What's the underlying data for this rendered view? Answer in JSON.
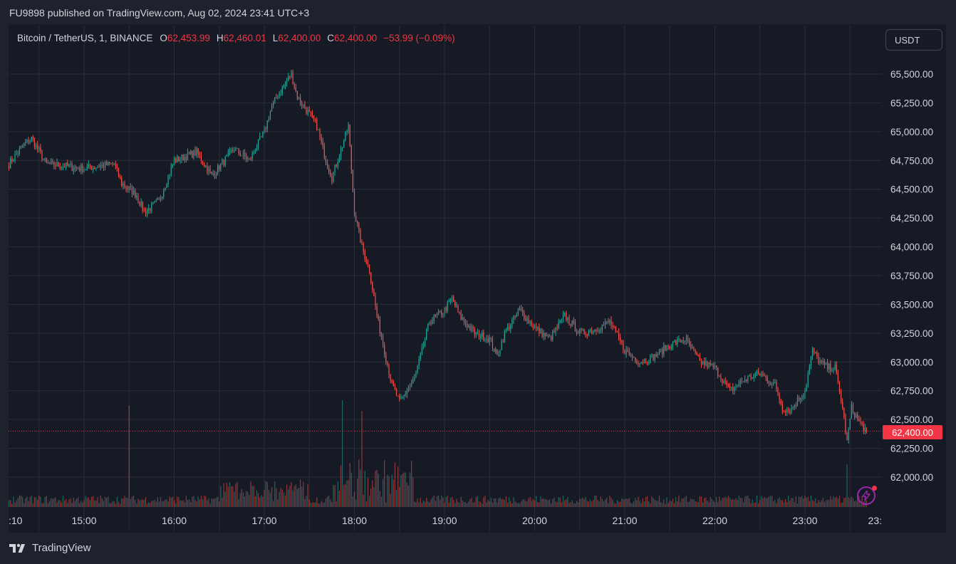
{
  "publisher_line": "FU9898 published on TradingView.com, Aug 02, 2024 23:41 UTC+3",
  "legend": {
    "symbol": "Bitcoin / TetherUS, 1, BINANCE",
    "o_label": "O",
    "o_value": "62,453.99",
    "h_label": "H",
    "h_value": "62,460.01",
    "l_label": "L",
    "l_value": "62,400.00",
    "c_label": "C",
    "c_value": "62,400.00",
    "change": "−53.99 (−0.09%)"
  },
  "currency_button": "USDT",
  "last_price_label": "62,400.00",
  "brand": "TradingView",
  "colors": {
    "up": "#26a69a",
    "down": "#ef5350",
    "grid": "#2a2e39",
    "background": "#161a25",
    "price_line": "#f23645"
  },
  "icons": {
    "logo": "tradingview-logo-icon",
    "alert": "lightning-bolt-icon"
  },
  "chart_data": {
    "type": "candlestick",
    "interval": "1 minute",
    "symbol": "Bitcoin / TetherUS",
    "exchange": "BINANCE",
    "x_tick_labels": [
      ":10",
      "15:00",
      "16:00",
      "17:00",
      "18:00",
      "19:00",
      "20:00",
      "21:00",
      "22:00",
      "23:00",
      "23:"
    ],
    "y_tick_labels": [
      "65,500.00",
      "65,250.00",
      "65,000.00",
      "64,750.00",
      "64,500.00",
      "64,250.00",
      "64,000.00",
      "63,750.00",
      "63,500.00",
      "63,250.00",
      "63,000.00",
      "62,750.00",
      "62,500.00",
      "62,250.00",
      "62,000.00"
    ],
    "y_ticks": [
      65500,
      65250,
      65000,
      64750,
      64500,
      64250,
      64000,
      63750,
      63500,
      63250,
      63000,
      62750,
      62500,
      62250,
      62000
    ],
    "ylim": [
      61850,
      65750
    ],
    "x_start": "14:10",
    "x_end": "23:41",
    "last_price": 62400,
    "grid": true,
    "price_path_keypoints": [
      {
        "t": "14:10",
        "price": 64720
      },
      {
        "t": "14:20",
        "price": 64890
      },
      {
        "t": "14:25",
        "price": 64940
      },
      {
        "t": "14:35",
        "price": 64720
      },
      {
        "t": "15:00",
        "price": 64680
      },
      {
        "t": "15:20",
        "price": 64720
      },
      {
        "t": "15:25",
        "price": 64550
      },
      {
        "t": "15:35",
        "price": 64450
      },
      {
        "t": "15:40",
        "price": 64300
      },
      {
        "t": "15:50",
        "price": 64400
      },
      {
        "t": "16:00",
        "price": 64750
      },
      {
        "t": "16:15",
        "price": 64820
      },
      {
        "t": "16:25",
        "price": 64620
      },
      {
        "t": "16:40",
        "price": 64850
      },
      {
        "t": "16:50",
        "price": 64750
      },
      {
        "t": "17:00",
        "price": 65000
      },
      {
        "t": "17:05",
        "price": 65220
      },
      {
        "t": "17:12",
        "price": 65380
      },
      {
        "t": "17:18",
        "price": 65500
      },
      {
        "t": "17:22",
        "price": 65300
      },
      {
        "t": "17:30",
        "price": 65150
      },
      {
        "t": "17:35",
        "price": 65050
      },
      {
        "t": "17:40",
        "price": 64800
      },
      {
        "t": "17:45",
        "price": 64600
      },
      {
        "t": "17:50",
        "price": 64800
      },
      {
        "t": "17:56",
        "price": 65050
      },
      {
        "t": "18:00",
        "price": 64300
      },
      {
        "t": "18:05",
        "price": 64000
      },
      {
        "t": "18:10",
        "price": 63800
      },
      {
        "t": "18:15",
        "price": 63400
      },
      {
        "t": "18:20",
        "price": 63100
      },
      {
        "t": "18:25",
        "price": 62800
      },
      {
        "t": "18:30",
        "price": 62650
      },
      {
        "t": "18:35",
        "price": 62750
      },
      {
        "t": "18:40",
        "price": 62850
      },
      {
        "t": "18:45",
        "price": 63100
      },
      {
        "t": "18:50",
        "price": 63350
      },
      {
        "t": "19:00",
        "price": 63450
      },
      {
        "t": "19:05",
        "price": 63550
      },
      {
        "t": "19:10",
        "price": 63400
      },
      {
        "t": "19:20",
        "price": 63250
      },
      {
        "t": "19:30",
        "price": 63200
      },
      {
        "t": "19:35",
        "price": 63050
      },
      {
        "t": "19:40",
        "price": 63250
      },
      {
        "t": "19:50",
        "price": 63450
      },
      {
        "t": "20:00",
        "price": 63300
      },
      {
        "t": "20:10",
        "price": 63200
      },
      {
        "t": "20:20",
        "price": 63400
      },
      {
        "t": "20:30",
        "price": 63250
      },
      {
        "t": "20:40",
        "price": 63280
      },
      {
        "t": "20:50",
        "price": 63350
      },
      {
        "t": "21:00",
        "price": 63100
      },
      {
        "t": "21:10",
        "price": 63000
      },
      {
        "t": "21:20",
        "price": 63050
      },
      {
        "t": "21:30",
        "price": 63150
      },
      {
        "t": "21:40",
        "price": 63200
      },
      {
        "t": "21:50",
        "price": 63000
      },
      {
        "t": "22:00",
        "price": 62950
      },
      {
        "t": "22:10",
        "price": 62750
      },
      {
        "t": "22:20",
        "price": 62850
      },
      {
        "t": "22:30",
        "price": 62900
      },
      {
        "t": "22:40",
        "price": 62800
      },
      {
        "t": "22:45",
        "price": 62600
      },
      {
        "t": "22:50",
        "price": 62580
      },
      {
        "t": "23:00",
        "price": 62750
      },
      {
        "t": "23:05",
        "price": 63100
      },
      {
        "t": "23:10",
        "price": 63000
      },
      {
        "t": "23:15",
        "price": 62950
      },
      {
        "t": "23:20",
        "price": 62950
      },
      {
        "t": "23:25",
        "price": 62600
      },
      {
        "t": "23:28",
        "price": 62300
      },
      {
        "t": "23:31",
        "price": 62600
      },
      {
        "t": "23:36",
        "price": 62480
      },
      {
        "t": "23:41",
        "price": 62400
      }
    ],
    "volume_spikes": [
      {
        "t": "15:30",
        "relative": 0.95
      },
      {
        "t": "17:52",
        "relative": 1.0
      },
      {
        "t": "18:05",
        "relative": 0.9
      },
      {
        "t": "23:28",
        "relative": 0.4
      }
    ]
  }
}
